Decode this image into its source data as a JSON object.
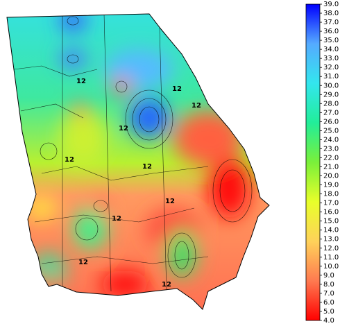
{
  "map": {
    "contour_labels": [
      "12",
      "12",
      "12",
      "12",
      "12",
      "12",
      "12",
      "12",
      "12",
      "12"
    ],
    "colorbar": {
      "range": [
        4,
        39
      ],
      "colors": [
        "#ff0000",
        "#ff7a50",
        "#ffd25a",
        "#e8ff2a",
        "#7af03a",
        "#22ee99",
        "#33e6ee",
        "#55aaff",
        "#0000ff"
      ],
      "ticks": [
        {
          "value": 4,
          "label": "4.0"
        },
        {
          "value": 5,
          "label": "5.0"
        },
        {
          "value": 6,
          "label": "6.0"
        },
        {
          "value": 7,
          "label": "7.0"
        },
        {
          "value": 8,
          "label": "8.0"
        },
        {
          "value": 9,
          "label": "9.0"
        },
        {
          "value": 10,
          "label": "10.0"
        },
        {
          "value": 11,
          "label": "11.0"
        },
        {
          "value": 12,
          "label": "12.0"
        },
        {
          "value": 13,
          "label": "13.0"
        },
        {
          "value": 14,
          "label": "14.0"
        },
        {
          "value": 15,
          "label": "15.0"
        },
        {
          "value": 16,
          "label": "16.0"
        },
        {
          "value": 17,
          "label": "17.0"
        },
        {
          "value": 18,
          "label": "18.0"
        },
        {
          "value": 19,
          "label": "19.0"
        },
        {
          "value": 20,
          "label": "20.0"
        },
        {
          "value": 21,
          "label": "21.0"
        },
        {
          "value": 22,
          "label": "22.0"
        },
        {
          "value": 23,
          "label": "23.0"
        },
        {
          "value": 24,
          "label": "24.0"
        },
        {
          "value": 25,
          "label": "25.0"
        },
        {
          "value": 26,
          "label": "26.0"
        },
        {
          "value": 27,
          "label": "27.0"
        },
        {
          "value": 28,
          "label": "28.0"
        },
        {
          "value": 29,
          "label": "29.0"
        },
        {
          "value": 30,
          "label": "30.0"
        },
        {
          "value": 31,
          "label": "31.0"
        },
        {
          "value": 32,
          "label": "32.0"
        },
        {
          "value": 33,
          "label": "33.0"
        },
        {
          "value": 34,
          "label": "34.0"
        },
        {
          "value": 35,
          "label": "35.0"
        },
        {
          "value": 36,
          "label": "36.0"
        },
        {
          "value": 37,
          "label": "37.0"
        },
        {
          "value": 38,
          "label": "38.0"
        },
        {
          "value": 39,
          "label": "39.0"
        }
      ]
    }
  }
}
